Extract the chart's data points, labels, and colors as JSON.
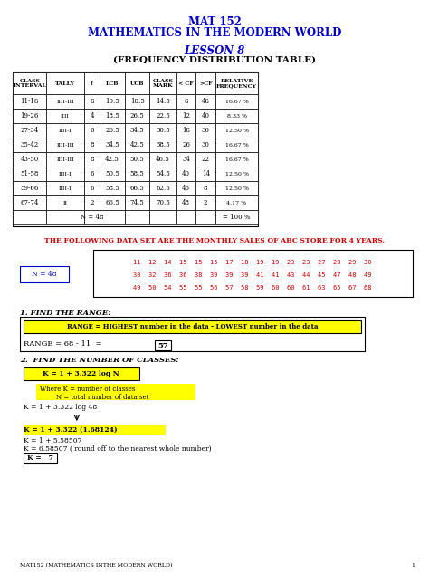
{
  "title1": "MAT 152",
  "title2": "MATHEMATICS IN THE MODERN WORLD",
  "lesson": "LESSON 8",
  "subtitle": "(FREQUENCY DISTRIBUTION TABLE)",
  "table_headers": [
    "CLASS\nINTERVAL",
    "TALLY",
    "f",
    "LCB",
    "UCB",
    "CLASS\nMARK",
    "< CF",
    ">CF",
    "RELATIVE\nFREQUENCY"
  ],
  "table_rows": [
    [
      "11-18",
      "IIII-III",
      "8",
      "10.5",
      "18.5",
      "14.5",
      "8",
      "48",
      "16.67 %"
    ],
    [
      "19-26",
      "IIII",
      "4",
      "18.5",
      "26.5",
      "22.5",
      "12",
      "40",
      "8.33 %"
    ],
    [
      "27-34",
      "IIII-I",
      "6",
      "26.5",
      "34.5",
      "30.5",
      "18",
      "36",
      "12.50 %"
    ],
    [
      "35-42",
      "IIII-III",
      "8",
      "34.5",
      "42.5",
      "38.5",
      "26",
      "30",
      "16.67 %"
    ],
    [
      "43-50",
      "IIII-III",
      "8",
      "42.5",
      "50.5",
      "46.5",
      "34",
      "22",
      "16.67 %"
    ],
    [
      "51-58",
      "IIII-I",
      "6",
      "50.5",
      "58.5",
      "54.5",
      "40",
      "14",
      "12.50 %"
    ],
    [
      "59-66",
      "IIII-I",
      "6",
      "58.5",
      "66.5",
      "62.5",
      "46",
      "8",
      "12.50 %"
    ],
    [
      "67-74",
      "II",
      "2",
      "66.5",
      "74.5",
      "70.5",
      "48",
      "2",
      "4.17 %"
    ]
  ],
  "table_footer": [
    "",
    "",
    "N = 48",
    "",
    "",
    "",
    "",
    "",
    "= 100 %"
  ],
  "data_note": "THE FOLLOWING DATA SET ARE THE MONTHLY SALES OF ABC STORE FOR 4 YEARS.",
  "data_set_row1": "11  12  14  15  15  15  17  18  19  19  23  23  27  28  29  30",
  "data_set_row2": "30  32  36  36  38  39  39  39  41  41  43  44  45  47  48  49",
  "data_set_row3": "49  50  54  55  55  56  57  58  59  60  60  61  63  65  67  68",
  "n_label": "N = 48",
  "section1": "1. FIND THE RANGE:",
  "range_box_text": "RANGE = HIGHEST number in the data - LOWEST number in the data",
  "range_eq": "RANGE = 68 - 11  =",
  "range_val": "57",
  "section2": "2.  FIND THE NUMBER OF CLASSES:",
  "k_formula_box": "K = 1 + 3.322 log N",
  "k_where": "Where K = number of classes\n        N = total number of data set",
  "k_step1": "K = 1 + 3.322 log 48",
  "k_step2": "K = 1 + 3.322 (1.68124)",
  "k_step3": "K = 1 + 5.58507",
  "k_step4": "K = 6.58507 ( round off to the nearest whole number)",
  "k_final": "K =   7",
  "footer": "MAT152 (MATHEMATICS INTHE MODERN WORLD)",
  "page": "1",
  "blue": "#0000CD",
  "red": "#CC0000",
  "yellow": "#FFFF00",
  "black": "#000000",
  "white": "#FFFFFF",
  "bg": "#FFFFFF"
}
